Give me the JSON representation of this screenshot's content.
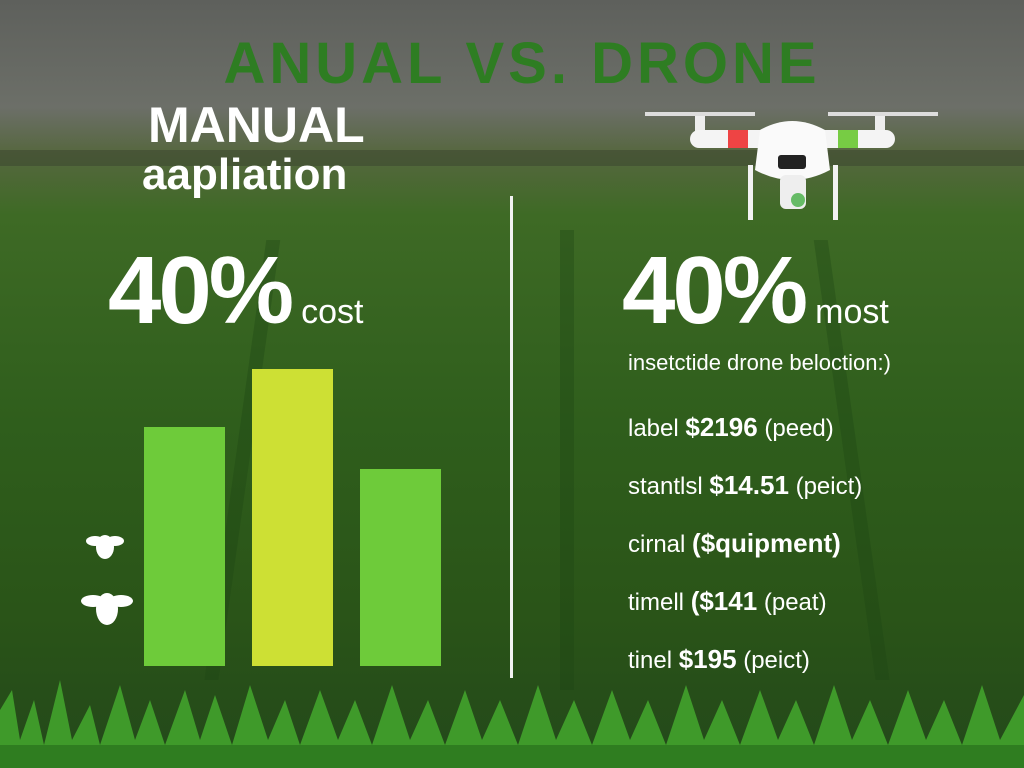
{
  "header": {
    "title": "ANUAL VS. DRONE"
  },
  "left": {
    "heading": [
      "MANUAL",
      "aapliation"
    ],
    "stat": "40%",
    "stat_label": "cost"
  },
  "right": {
    "stat": "40%",
    "stat_label": "most",
    "subtitle": "insetctide drone beloction:)",
    "rows": [
      [
        "label",
        "$2196",
        "(peed)"
      ],
      [
        "stantlsl",
        "$14.51",
        "(peict)"
      ],
      [
        "cirnal",
        "($quipment)",
        ""
      ],
      [
        "timell",
        "($141",
        "(peat)"
      ],
      [
        "tinel",
        "$195",
        "(peict)"
      ]
    ]
  }
}
